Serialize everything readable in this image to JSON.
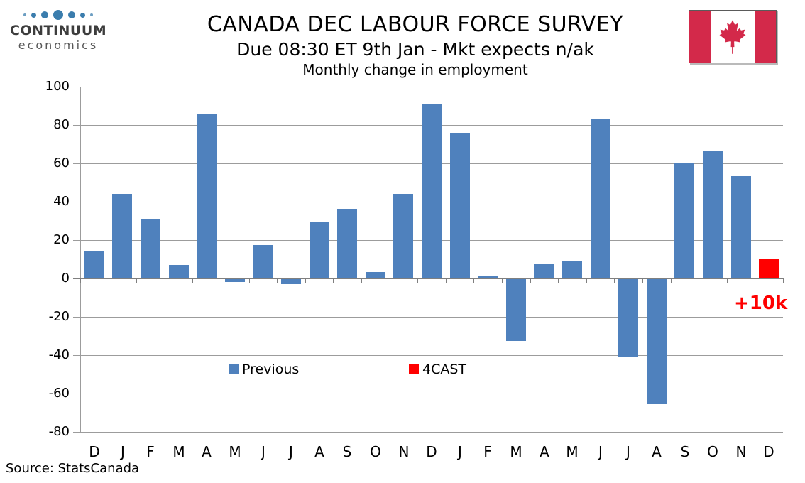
{
  "logo": {
    "line1": "CONTINUUM",
    "line2": "economics",
    "dot_color": "#3B7DAD",
    "dot_sizes": [
      4,
      7,
      10,
      14,
      10,
      7,
      4
    ]
  },
  "header": {
    "title": "CANADA DEC LABOUR FORCE SURVEY",
    "subtitle": "Due 08:30 ET 9th Jan - Mkt expects n/ak"
  },
  "flag": {
    "band_color": "#D3294A",
    "leaf_color": "#D3294A"
  },
  "annotation": {
    "label": "+10k",
    "color": "#FF0000"
  },
  "source_note": "Source: StatsCanada",
  "chart_data": {
    "type": "bar",
    "title": "Monthly change in employment",
    "categories": [
      "D",
      "J",
      "F",
      "M",
      "A",
      "M",
      "J",
      "J",
      "A",
      "S",
      "O",
      "N",
      "D",
      "J",
      "F",
      "M",
      "A",
      "M",
      "J",
      "J",
      "A",
      "S",
      "O",
      "N",
      "D"
    ],
    "series": [
      {
        "name": "Previous",
        "color": "#4F81BD",
        "values": [
          14,
          44,
          31,
          7,
          86,
          -2,
          17.5,
          -3,
          29.5,
          36.5,
          3.5,
          44,
          91,
          76,
          1,
          -32.5,
          7.5,
          9,
          83,
          -41,
          -65.5,
          60.5,
          66.5,
          53.5,
          null
        ]
      },
      {
        "name": "4CAST",
        "color": "#FF0000",
        "values": [
          null,
          null,
          null,
          null,
          null,
          null,
          null,
          null,
          null,
          null,
          null,
          null,
          null,
          null,
          null,
          null,
          null,
          null,
          null,
          null,
          null,
          null,
          null,
          null,
          10
        ]
      }
    ],
    "xlabel": "",
    "ylabel": "",
    "ylim": [
      -80,
      100
    ],
    "ytick_step": 20,
    "grid": true,
    "legend_position": "inside-bottom"
  }
}
